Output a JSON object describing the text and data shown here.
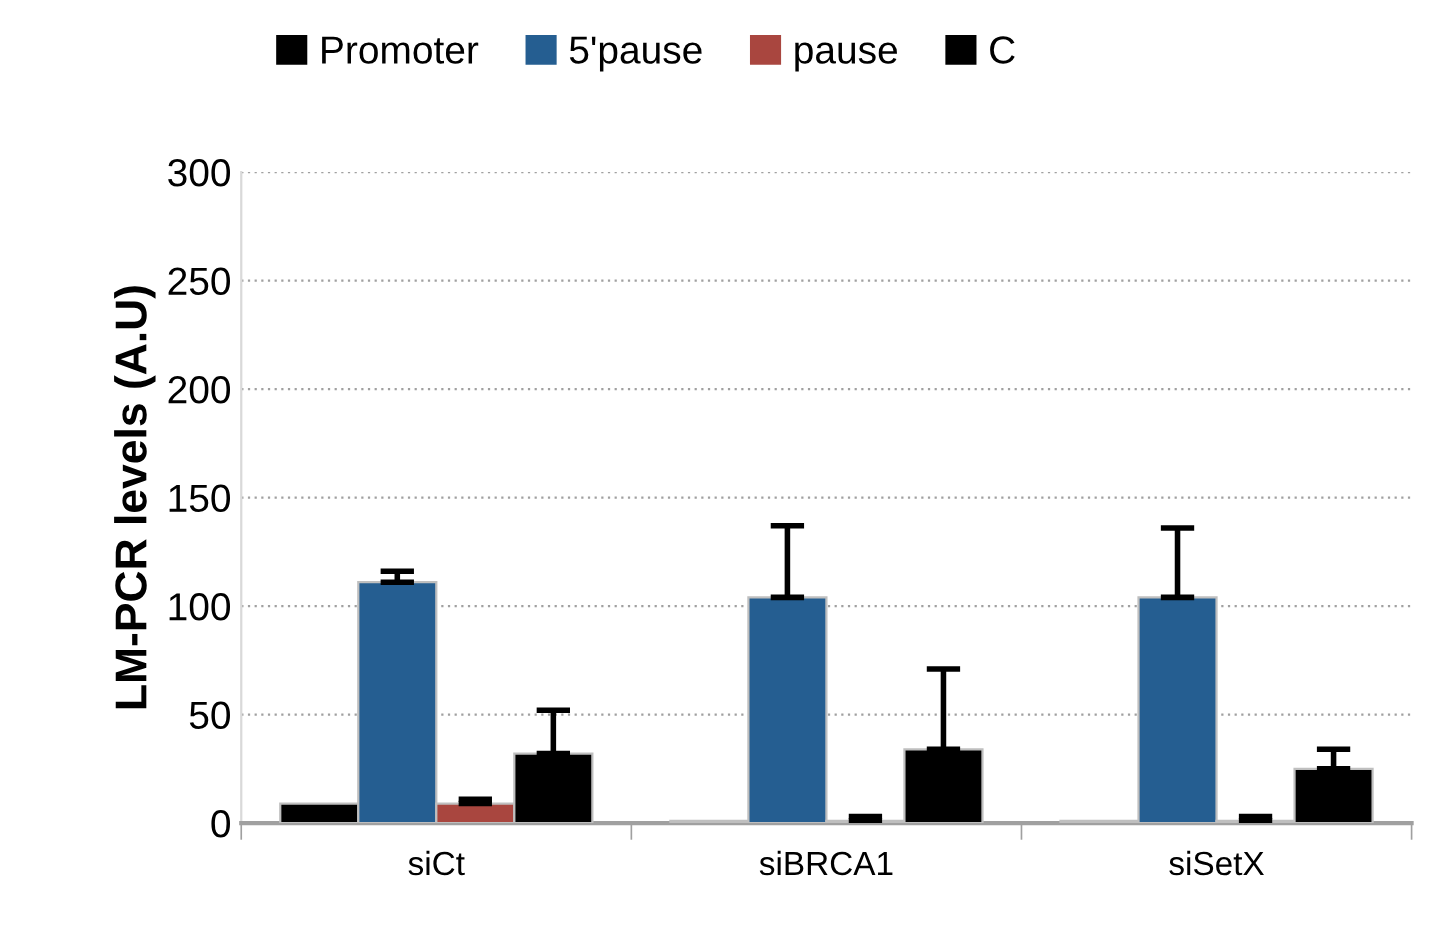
{
  "chart_data": {
    "type": "bar",
    "ylabel": "LM-PCR levels (A.U)",
    "categories": [
      "siCt",
      "siBRCA1",
      "siSetX"
    ],
    "series": [
      {
        "name": "Promoter",
        "color": "#000000",
        "values": [
          9,
          1,
          1
        ]
      },
      {
        "name": "5'pause",
        "color": "#255e91",
        "values": [
          111,
          104,
          104
        ],
        "errors": [
          [
            111,
            116
          ],
          [
            104,
            137
          ],
          [
            104,
            136
          ]
        ]
      },
      {
        "name": "pause",
        "color": "#a9463f",
        "values": [
          9,
          1,
          1
        ],
        "errors": [
          [
            9,
            11
          ],
          [
            1,
            3
          ],
          [
            1,
            3
          ]
        ]
      },
      {
        "name": "C",
        "color": "#000000",
        "values": [
          32,
          34,
          25
        ],
        "errors": [
          [
            32,
            52
          ],
          [
            34,
            71
          ],
          [
            25,
            34
          ]
        ]
      }
    ],
    "ylim": [
      0,
      300
    ],
    "yticks": [
      0,
      50,
      100,
      150,
      200,
      250,
      300
    ],
    "grid": "y",
    "legend": "top"
  }
}
